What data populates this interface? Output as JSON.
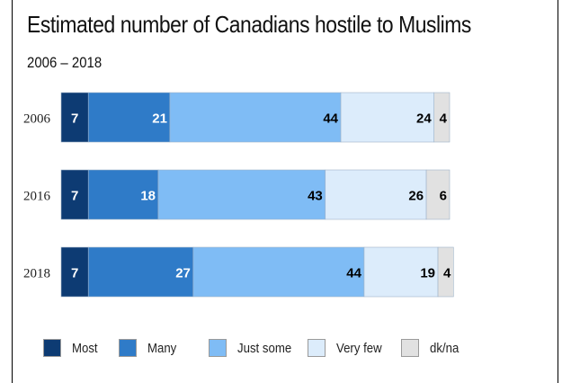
{
  "chart_data": {
    "type": "bar",
    "orientation": "horizontal",
    "stacked": true,
    "title": "Estimated number of Canadians hostile to Muslims",
    "subtitle": "2006 – 2018",
    "categories": [
      "2006",
      "2016",
      "2018"
    ],
    "series": [
      {
        "name": "Most",
        "values": [
          7,
          7,
          7
        ],
        "color": "#0d3b73"
      },
      {
        "name": "Many",
        "values": [
          21,
          18,
          27
        ],
        "color": "#2f7bc8"
      },
      {
        "name": "Just some",
        "values": [
          44,
          43,
          44
        ],
        "color": "#7fbcf5"
      },
      {
        "name": "Very few",
        "values": [
          24,
          26,
          19
        ],
        "color": "#dcecfb"
      },
      {
        "name": "dk/na",
        "values": [
          4,
          6,
          4
        ],
        "color": "#e1e1e1"
      }
    ],
    "data_labels": true,
    "legend_position": "bottom",
    "grid": false
  }
}
